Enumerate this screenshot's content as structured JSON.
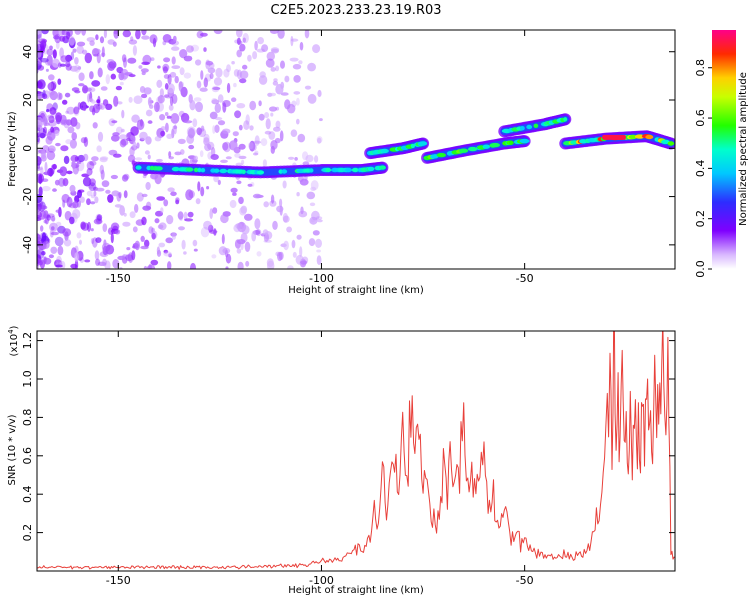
{
  "figure": {
    "title": "C2E5.2023.233.23.19.R03"
  },
  "chart_data": [
    {
      "type": "heatmap",
      "title": "",
      "xlabel": "Height of straight line (km)",
      "ylabel": "Frequency (Hz)",
      "xlim": [
        -170,
        -13
      ],
      "ylim": [
        -50,
        49
      ],
      "xticks": [
        -150,
        -100,
        -50
      ],
      "yticks": [
        -40,
        -20,
        0,
        20,
        40
      ],
      "colorbar": {
        "label": "Normalized spectral amplitude",
        "range": [
          0,
          0.95
        ],
        "ticks": [
          0.0,
          0.2,
          0.4,
          0.6,
          0.8
        ],
        "colormap": [
          "#ffffff",
          "#7f00ff",
          "#2d2dff",
          "#00ffff",
          "#00ff22",
          "#ffff00",
          "#ff2a00",
          "#ff0088"
        ]
      },
      "tracks": [
        {
          "x": [
            -145,
            -130,
            -115,
            -100,
            -90,
            -85
          ],
          "y": [
            -8,
            -9,
            -10,
            -9,
            -9,
            -8
          ],
          "peak": 0.55
        },
        {
          "x": [
            -88,
            -80,
            -75
          ],
          "y": [
            -2,
            0,
            2
          ],
          "peak": 0.6
        },
        {
          "x": [
            -74,
            -65,
            -55,
            -50
          ],
          "y": [
            -4,
            -1,
            2,
            3
          ],
          "peak": 0.65
        },
        {
          "x": [
            -55,
            -45,
            -40
          ],
          "y": [
            7,
            10,
            12
          ],
          "peak": 0.6
        },
        {
          "x": [
            -40,
            -30,
            -20,
            -14
          ],
          "y": [
            2,
            4,
            5,
            2
          ],
          "peak": 0.95
        }
      ]
    },
    {
      "type": "line",
      "title": "",
      "xlabel": "Height of straight line (km)",
      "ylabel": "SNR (10 * v/v)",
      "yscale_label": "(x10",
      "yscale_exp": "4",
      "xlim": [
        -170,
        -13
      ],
      "ylim": [
        0,
        1.25
      ],
      "xticks": [
        -150,
        -100,
        -50
      ],
      "yticks": [
        0.2,
        0.4,
        0.6,
        0.8,
        1.0,
        1.2
      ],
      "color": "#e8403a",
      "x": [
        -170,
        -160,
        -150,
        -140,
        -130,
        -120,
        -110,
        -105,
        -100,
        -97,
        -95,
        -93,
        -91,
        -90,
        -89,
        -88,
        -87,
        -86,
        -85,
        -84,
        -83,
        -82,
        -81,
        -80,
        -79,
        -78,
        -77,
        -76,
        -75,
        -74,
        -73,
        -72,
        -71,
        -70,
        -69,
        -68,
        -67,
        -66,
        -65,
        -64,
        -63,
        -62,
        -61,
        -60,
        -59,
        -58,
        -57,
        -56,
        -55,
        -54,
        -53,
        -52,
        -51,
        -50,
        -49,
        -48,
        -47,
        -46,
        -45,
        -44,
        -43,
        -42,
        -41,
        -40,
        -39,
        -38,
        -37,
        -36,
        -35,
        -34,
        -33,
        -32,
        -31,
        -30,
        -29,
        -28.5,
        -28,
        -27.5,
        -27,
        -26.5,
        -26,
        -25.5,
        -25,
        -24.5,
        -24,
        -23.5,
        -23,
        -22.5,
        -22,
        -21.5,
        -21,
        -20.5,
        -20,
        -19.5,
        -19,
        -18.5,
        -18,
        -17.5,
        -17,
        -16.5,
        -16,
        -15.5,
        -15,
        -14.5,
        -14,
        -13.5,
        -13
      ],
      "y": [
        0.02,
        0.02,
        0.02,
        0.02,
        0.02,
        0.02,
        0.03,
        0.03,
        0.05,
        0.05,
        0.07,
        0.09,
        0.12,
        0.09,
        0.12,
        0.2,
        0.3,
        0.22,
        0.5,
        0.35,
        0.45,
        0.62,
        0.35,
        0.8,
        0.45,
        0.93,
        0.55,
        0.75,
        0.4,
        0.45,
        0.3,
        0.25,
        0.3,
        0.55,
        0.35,
        0.65,
        0.45,
        0.5,
        0.85,
        0.4,
        0.6,
        0.35,
        0.55,
        0.65,
        0.3,
        0.45,
        0.25,
        0.3,
        0.35,
        0.22,
        0.16,
        0.25,
        0.13,
        0.15,
        0.12,
        0.1,
        0.09,
        0.08,
        0.1,
        0.08,
        0.07,
        0.08,
        0.07,
        0.09,
        0.08,
        0.07,
        0.1,
        0.08,
        0.1,
        0.13,
        0.18,
        0.3,
        0.45,
        0.65,
        0.95,
        0.6,
        1.24,
        0.7,
        0.9,
        0.55,
        1.05,
        0.6,
        0.8,
        0.5,
        0.9,
        0.55,
        1.0,
        0.6,
        0.85,
        0.5,
        0.95,
        0.65,
        1.0,
        0.6,
        0.9,
        0.7,
        1.05,
        0.65,
        0.95,
        0.7,
        1.1,
        0.75,
        1.17,
        0.8,
        0.12,
        0.08,
        0.07
      ]
    }
  ]
}
